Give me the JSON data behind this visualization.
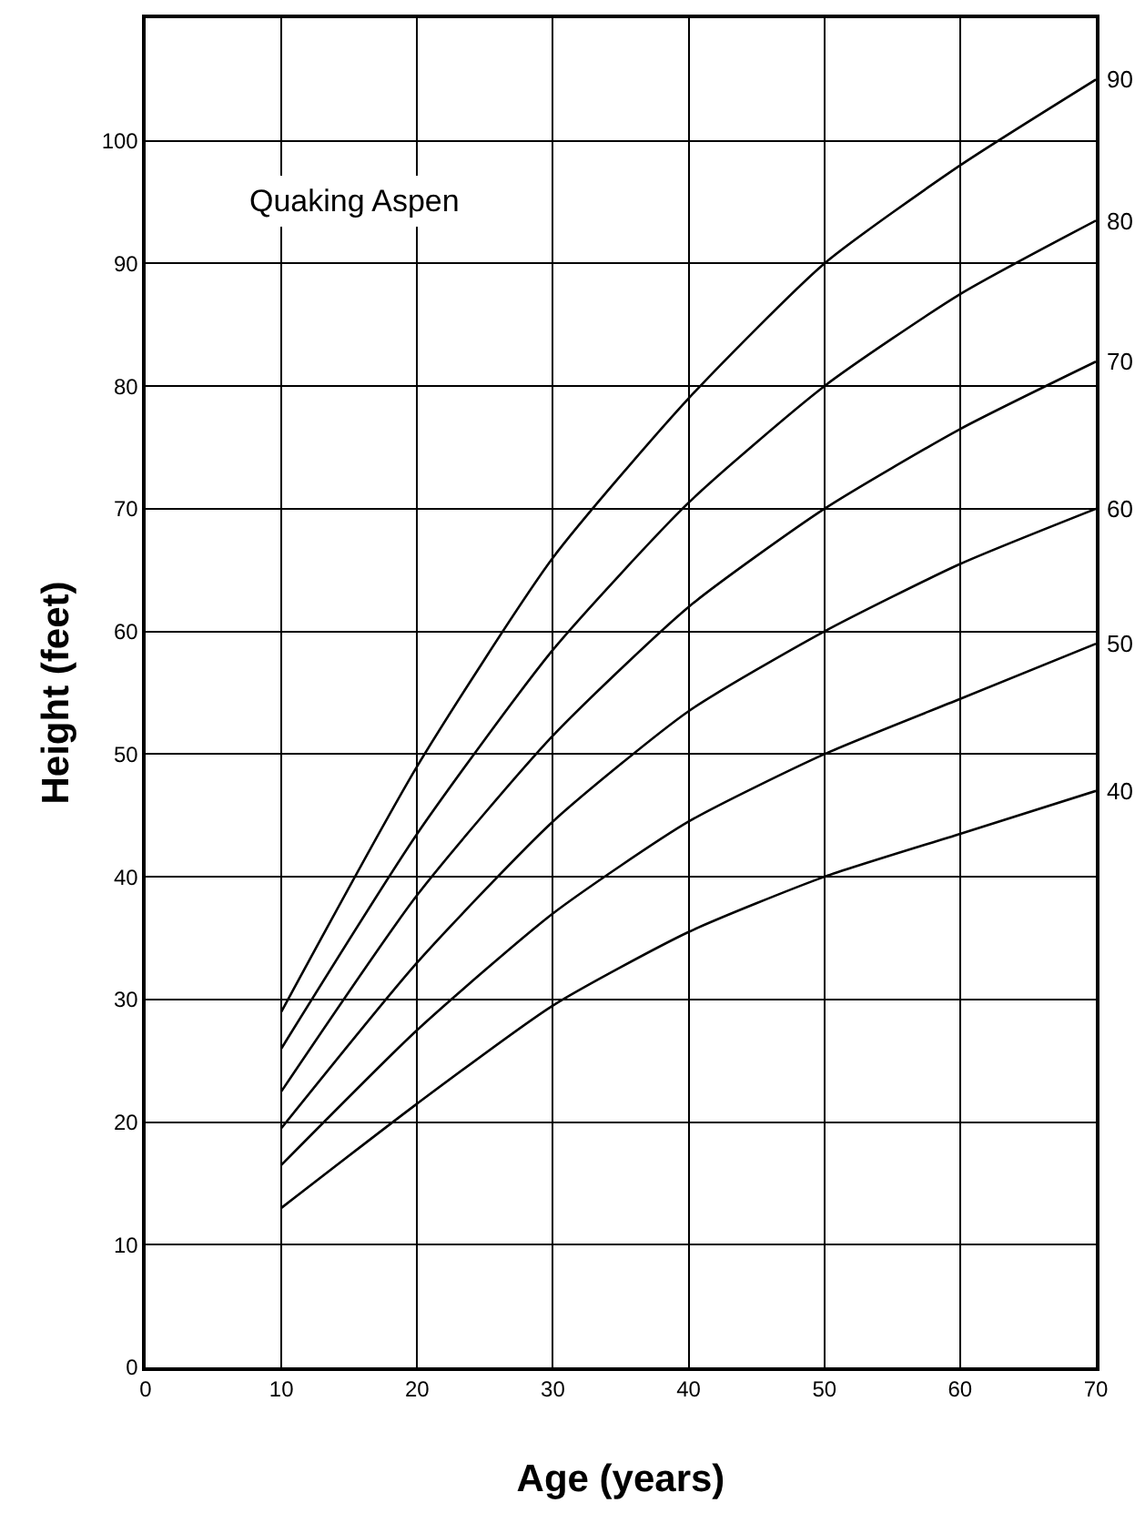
{
  "chart_data": {
    "type": "line",
    "title": "Quaking Aspen",
    "xlabel": "Age (years)",
    "ylabel": "Height (feet)",
    "x": [
      10,
      20,
      30,
      40,
      50,
      60,
      70
    ],
    "series": [
      {
        "name": "90",
        "color": "#000000",
        "values": [
          29,
          49,
          66,
          79,
          90,
          98,
          105
        ]
      },
      {
        "name": "80",
        "color": "#000000",
        "values": [
          26,
          43.5,
          58.5,
          70.5,
          80,
          87.5,
          93.5
        ]
      },
      {
        "name": "70",
        "color": "#000000",
        "values": [
          22.5,
          38.5,
          51.5,
          62,
          70,
          76.5,
          82
        ]
      },
      {
        "name": "60",
        "color": "#000000",
        "values": [
          19.5,
          33,
          44.5,
          53.5,
          60,
          65.5,
          70
        ]
      },
      {
        "name": "50",
        "color": "#000000",
        "values": [
          16.5,
          27.5,
          37,
          44.5,
          50,
          54.5,
          59
        ]
      },
      {
        "name": "40",
        "color": "#000000",
        "values": [
          13,
          21.5,
          29.5,
          35.5,
          40,
          43.5,
          47
        ]
      }
    ],
    "xlim": [
      0,
      70
    ],
    "xticks": [
      0,
      10,
      20,
      30,
      40,
      50,
      60,
      70
    ],
    "ylim": [
      0,
      110
    ],
    "yticks": [
      0,
      10,
      20,
      30,
      40,
      50,
      60,
      70,
      80,
      90,
      100
    ],
    "grid": true,
    "legend": false,
    "marker": "none",
    "line_style": "solid"
  }
}
